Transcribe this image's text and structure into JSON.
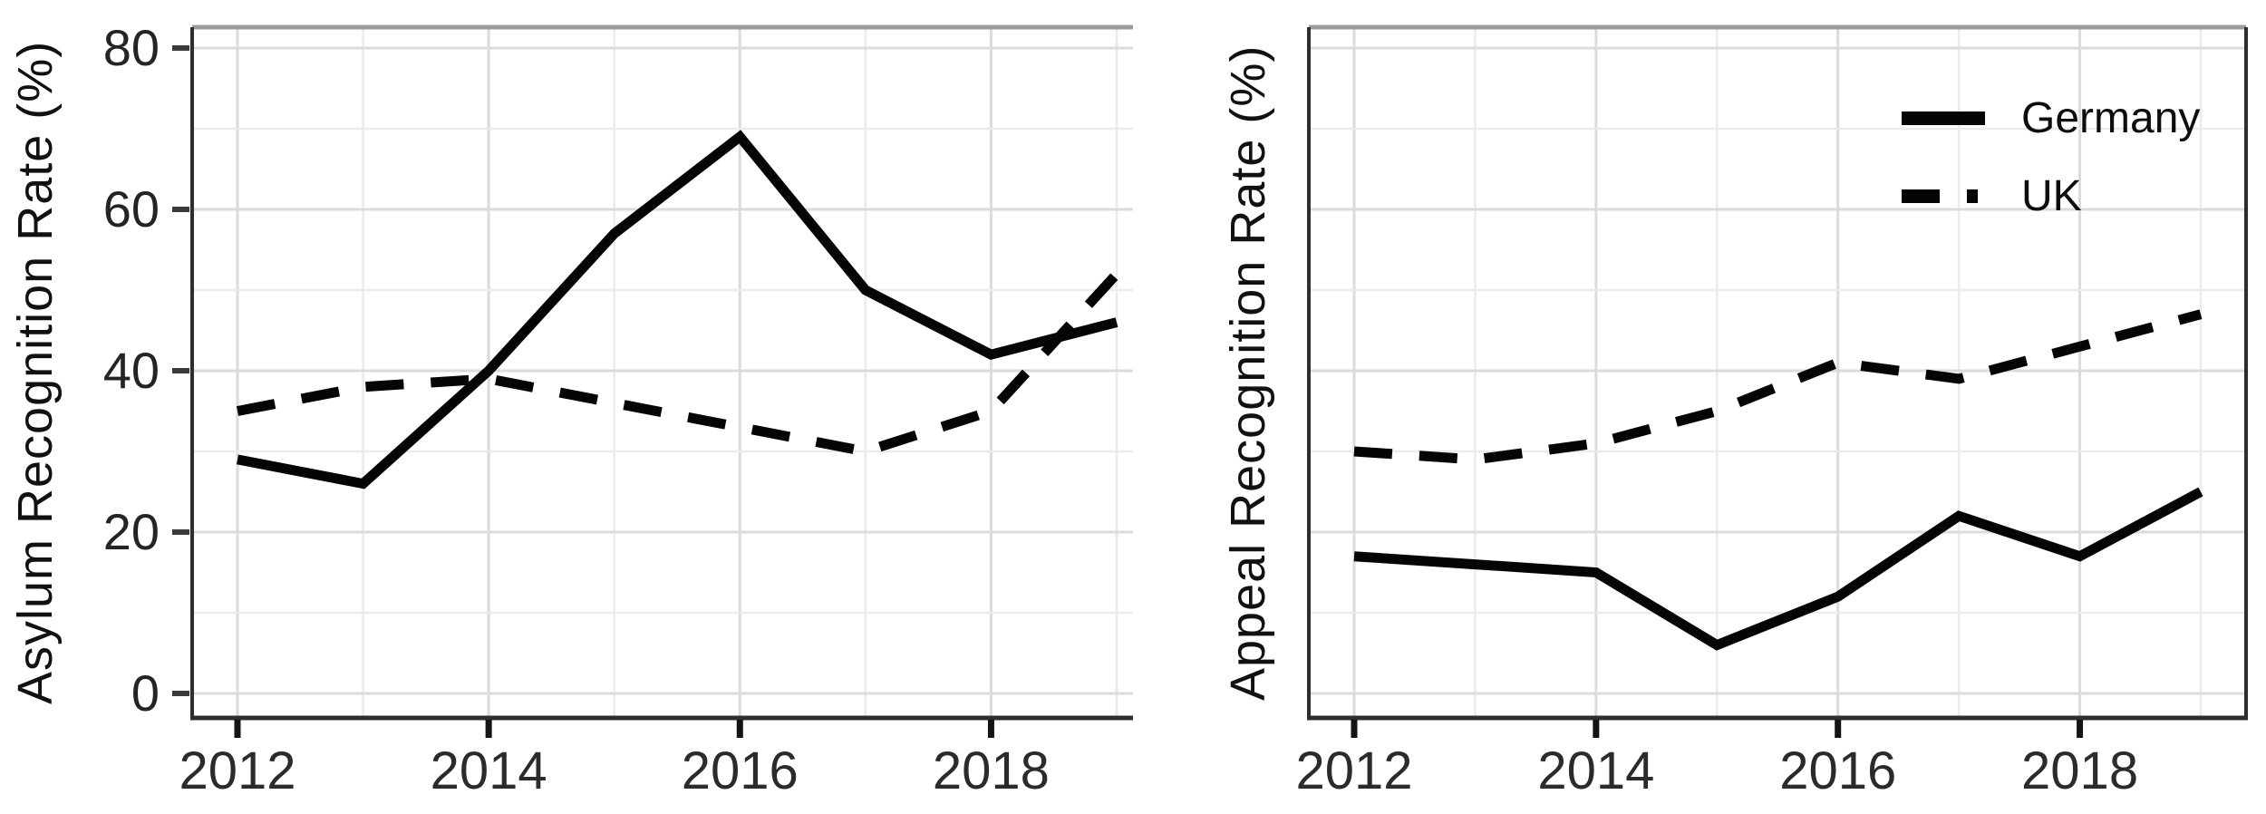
{
  "figure_background": "#ffffff",
  "colors": {
    "line": "#050505",
    "grid_major": "#dbdbdb",
    "grid_minor": "#ebebeb",
    "panel_border": "#2e2e2e",
    "panel_border_top": "#9c9c9c",
    "axis_tick": "#3a3a3a",
    "axis_text": "#242424"
  },
  "legend": {
    "position": "top-right-of-second-panel",
    "items": [
      {
        "label": "Germany",
        "style": "solid"
      },
      {
        "label": "UK",
        "style": "dashed"
      }
    ]
  },
  "chart_data": [
    {
      "type": "line",
      "title": "",
      "xlabel": "",
      "ylabel": "Asylum Recognition Rate (%)",
      "x": [
        2012,
        2013,
        2014,
        2015,
        2016,
        2017,
        2018,
        2019
      ],
      "xtick_labels": [
        "2012",
        "2014",
        "2016",
        "2018"
      ],
      "xticks": [
        2012,
        2014,
        2016,
        2018
      ],
      "ytick_labels": [
        "0",
        "20",
        "40",
        "60",
        "80"
      ],
      "yticks": [
        0,
        20,
        40,
        60,
        80
      ],
      "yticks_minor": [
        10,
        30,
        50,
        70
      ],
      "ylim": [
        0,
        80
      ],
      "grid": true,
      "show_y_tick_labels": true,
      "legend": false,
      "series": [
        {
          "name": "Germany",
          "style": "solid",
          "values": [
            29,
            26,
            40,
            57,
            69,
            50,
            42,
            46
          ]
        },
        {
          "name": "UK",
          "style": "dashed",
          "values": [
            35,
            38,
            39,
            36,
            33,
            30,
            35,
            52
          ]
        }
      ]
    },
    {
      "type": "line",
      "title": "",
      "xlabel": "",
      "ylabel": "Appeal Recognition Rate (%)",
      "x": [
        2012,
        2013,
        2014,
        2015,
        2016,
        2017,
        2018,
        2019
      ],
      "xtick_labels": [
        "2012",
        "2014",
        "2016",
        "2018"
      ],
      "xticks": [
        2012,
        2014,
        2016,
        2018
      ],
      "ytick_labels": [],
      "yticks": [
        0,
        20,
        40,
        60,
        80
      ],
      "yticks_minor": [
        10,
        30,
        50,
        70
      ],
      "ylim": [
        0,
        80
      ],
      "grid": true,
      "show_y_tick_labels": false,
      "legend": true,
      "series": [
        {
          "name": "Germany",
          "style": "solid",
          "values": [
            17,
            16,
            15,
            6,
            12,
            22,
            17,
            25
          ]
        },
        {
          "name": "UK",
          "style": "dashed",
          "values": [
            30,
            29,
            31,
            35,
            41,
            39,
            43,
            47
          ]
        }
      ]
    }
  ]
}
